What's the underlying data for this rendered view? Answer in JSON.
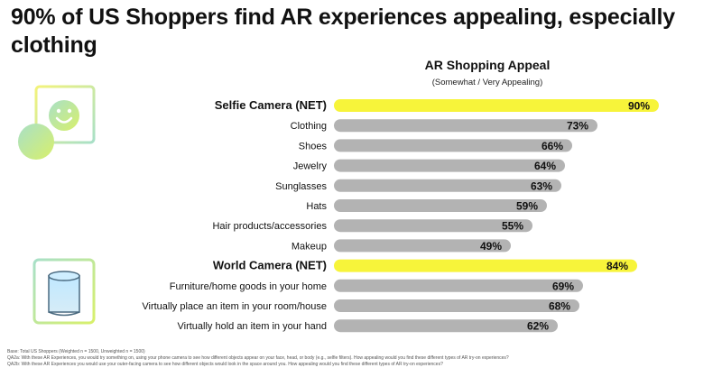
{
  "headline": "90% of US Shoppers find AR experiences appealing, especially clothing",
  "chart_title": "AR Shopping Appeal",
  "chart_subtitle": "(Somewhat / Very Appealing)",
  "icons": {
    "selfie": "smiley-face-icon",
    "world": "cylinder-object-icon"
  },
  "colors": {
    "highlight_bar": "#f7f43a",
    "normal_bar": "#b3b3b3",
    "icon_gradient_start": "#f3f37a",
    "icon_gradient_end": "#a8e0c8"
  },
  "chart_data": {
    "type": "bar",
    "orientation": "horizontal",
    "title": "AR Shopping Appeal",
    "subtitle": "(Somewhat / Very Appealing)",
    "xlim": [
      0,
      100
    ],
    "grid": false,
    "categories": [
      "Selfie Camera (NET)",
      "Clothing",
      "Shoes",
      "Jewelry",
      "Sunglasses",
      "Hats",
      "Hair products/accessories",
      "Makeup",
      "World Camera (NET)",
      "Furniture/home goods in your home",
      "Virtually place an item in your room/house",
      "Virtually hold an item in your hand"
    ],
    "values": [
      90,
      73,
      66,
      64,
      63,
      59,
      55,
      49,
      84,
      69,
      68,
      62
    ],
    "data_labels": [
      "90%",
      "73%",
      "66%",
      "64%",
      "63%",
      "59%",
      "55%",
      "49%",
      "84%",
      "69%",
      "68%",
      "62%"
    ],
    "highlighted": [
      true,
      false,
      false,
      false,
      false,
      false,
      false,
      false,
      true,
      false,
      false,
      false
    ]
  },
  "notes": [
    "Base: Total US Shoppers (Weighted n = 1500, Unweighted n = 1500)",
    "QA2a: With these AR Experiences, you would try something on, using your phone camera to see how different objects appear on your face, head, or body (e.g., selfie filters). How appealing would you find these different types of AR try-on experiences?",
    "QA2b: With these AR Experiences you would use your outer-facing camera to see how different objects would look in the space around you. How appealing would you find these different types of AR try-on experiences?"
  ]
}
